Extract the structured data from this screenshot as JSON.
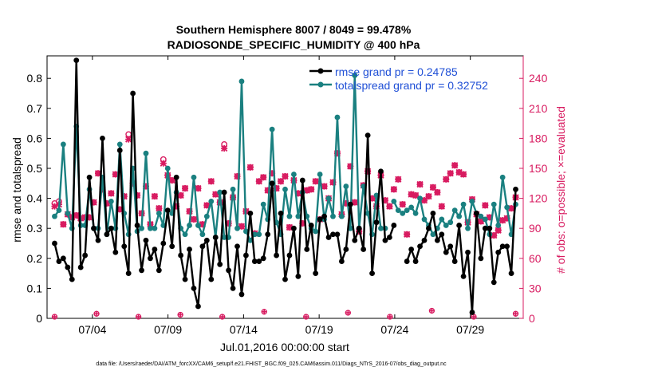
{
  "chart_data": {
    "type": "line",
    "title_line1": "Southern Hemisphere 8007 / 8049 = 99.478%",
    "title_line2": "RADIOSONDE_SPECIFIC_HUMIDITY @ 400 hPa",
    "ylabel_left": "rmse and totalspread",
    "ylabel_right": "# of obs: o=possible; ×=evaluated",
    "xlabel": "Jul.01,2016 00:00:00 start",
    "footer": "data file: /Users/raeder/DAI/ATM_forcXX/CAM6_setup/f.e21.FHIST_BGC.f09_025.CAM6assim.011/Diags_NTrS_2016-07/obs_diag_output.nc",
    "x_range": [
      0,
      31.5
    ],
    "ylim_left": [
      0,
      0.875
    ],
    "ylim_right": [
      0,
      262.5
    ],
    "y_ticks_left": [
      0,
      0.1,
      0.2,
      0.3,
      0.4,
      0.5,
      0.6,
      0.7,
      0.8
    ],
    "y_tick_labels_left": [
      "0",
      "0.1",
      "0.2",
      "0.3",
      "0.4",
      "0.5",
      "0.6",
      "0.7",
      "0.8"
    ],
    "y_ticks_right": [
      0,
      30,
      60,
      90,
      120,
      150,
      180,
      210,
      240
    ],
    "y_tick_labels_right": [
      "0",
      "30",
      "60",
      "90",
      "120",
      "150",
      "180",
      "210",
      "240"
    ],
    "x_ticks": [
      3,
      8,
      13,
      18,
      23,
      28
    ],
    "x_tick_labels": [
      "07/04",
      "07/09",
      "07/14",
      "07/19",
      "07/24",
      "07/29"
    ],
    "colors": {
      "rmse": "#000000",
      "spread": "#1a8080",
      "obs": "#d81b60",
      "legend_text": "#1f4fd6"
    },
    "series": [
      {
        "name": "rmse grand pr = 0.24785",
        "values": [
          0.25,
          0.19,
          0.2,
          0.17,
          0.13,
          0.86,
          0.17,
          0.21,
          0.47,
          0.3,
          0.26,
          0.6,
          0.28,
          0.3,
          0.22,
          0.56,
          0.24,
          0.15,
          0.75,
          0.31,
          0.16,
          0.26,
          0.2,
          0.23,
          0.16,
          0.25,
          0.36,
          0.24,
          0.47,
          0.21,
          0.13,
          0.23,
          0.1,
          0.04,
          0.24,
          0.26,
          0.13,
          0.27,
          0.18,
          0.42,
          0.16,
          0.1,
          0.24,
          0.08,
          0.21,
          0.35,
          0.19,
          0.19,
          0.2,
          0.28,
          0.45,
          0.21,
          0.35,
          0.13,
          0.21,
          0.3,
          0.14,
          0.46,
          0.23,
          0.31,
          0.15,
          0.33,
          0.34,
          0.27,
          0.28,
          0.28,
          0.19,
          0.23,
          0.38,
          0.26,
          0.3,
          0.23,
          0.61,
          0.15,
          0.32,
          0.49,
          0.26,
          0.27,
          0.31,
          null,
          null,
          0.19,
          0.23,
          0.19,
          0.24,
          0.26,
          0.3,
          0.35,
          0.26,
          0.28,
          0.22,
          0.24,
          0.19,
          0.31,
          0.14,
          0.22,
          0.02,
          0.35,
          0.2,
          0.3,
          0.3,
          0.12,
          0.22,
          0.24,
          0.24,
          0.15,
          0.43
        ]
      },
      {
        "name": "totalspread grand pr = 0.32752",
        "values": [
          0.34,
          0.36,
          0.58,
          0.35,
          0.3,
          0.64,
          0.31,
          0.31,
          0.43,
          0.3,
          0.3,
          0.47,
          0.28,
          0.39,
          0.3,
          0.58,
          0.35,
          0.28,
          0.5,
          0.29,
          0.3,
          0.55,
          0.3,
          0.3,
          0.35,
          0.31,
          0.5,
          0.35,
          0.42,
          0.3,
          0.28,
          0.31,
          0.47,
          0.31,
          0.28,
          0.34,
          0.39,
          0.27,
          0.42,
          0.27,
          0.27,
          0.43,
          0.3,
          0.79,
          0.29,
          0.26,
          0.28,
          0.28,
          0.38,
          0.33,
          0.63,
          0.32,
          0.28,
          0.43,
          0.34,
          0.48,
          0.34,
          0.42,
          0.34,
          0.3,
          0.29,
          0.48,
          0.33,
          0.4,
          0.34,
          0.67,
          0.34,
          0.44,
          0.3,
          0.81,
          0.3,
          0.44,
          0.35,
          0.28,
          0.41,
          0.3,
          0.3,
          null,
          0.39,
          0.36,
          0.35,
          0.36,
          0.37,
          0.35,
          0.4,
          0.33,
          0.31,
          0.28,
          0.3,
          0.33,
          0.31,
          0.32,
          0.36,
          0.34,
          0.38,
          0.3,
          0.39,
          0.35,
          0.34,
          0.33,
          0.28,
          0.38,
          0.31,
          0.47,
          0.37,
          0.28,
          0.38
        ]
      }
    ],
    "obs_possible": [
      115,
      117,
      94,
      104,
      101,
      103,
      100,
      101,
      101,
      116,
      145,
      129,
      115,
      125,
      144,
      109,
      122,
      184,
      135,
      123,
      105,
      132,
      94,
      122,
      110,
      159,
      143,
      138,
      112,
      123,
      130,
      107,
      99,
      130,
      94,
      113,
      137,
      124,
      116,
      174,
      95,
      121,
      142,
      92,
      107,
      151,
      85,
      137,
      141,
      128,
      145,
      130,
      137,
      142,
      91,
      138,
      125,
      95,
      128,
      129,
      137,
      99,
      132,
      120,
      136,
      165,
      104,
      115,
      152,
      116,
      87,
      133,
      147,
      120,
      112,
      143,
      118,
      112,
      129,
      139,
      114,
      84,
      124,
      123,
      134,
      118,
      122,
      131,
      126,
      112,
      139,
      145,
      153,
      146,
      144,
      96,
      119,
      104,
      97,
      113,
      101,
      83,
      88,
      98,
      100,
      110,
      121
    ],
    "obs_evaluated": [
      112,
      114,
      94,
      104,
      101,
      103,
      100,
      101,
      101,
      116,
      145,
      129,
      115,
      125,
      144,
      109,
      122,
      179,
      135,
      123,
      105,
      132,
      94,
      122,
      110,
      155,
      143,
      138,
      112,
      123,
      130,
      107,
      99,
      130,
      94,
      113,
      137,
      124,
      116,
      170,
      95,
      121,
      142,
      92,
      107,
      151,
      85,
      137,
      141,
      128,
      145,
      130,
      137,
      142,
      91,
      138,
      125,
      95,
      128,
      129,
      137,
      99,
      132,
      120,
      136,
      165,
      104,
      115,
      152,
      116,
      87,
      133,
      147,
      120,
      112,
      143,
      118,
      112,
      129,
      139,
      114,
      84,
      124,
      123,
      134,
      118,
      122,
      131,
      126,
      112,
      139,
      145,
      153,
      146,
      144,
      96,
      119,
      104,
      97,
      113,
      101,
      83,
      88,
      98,
      100,
      110,
      121
    ],
    "obs_baseline_values": [
      0,
      3,
      0,
      2,
      0,
      5,
      0,
      4,
      0,
      6,
      0,
      3
    ]
  }
}
